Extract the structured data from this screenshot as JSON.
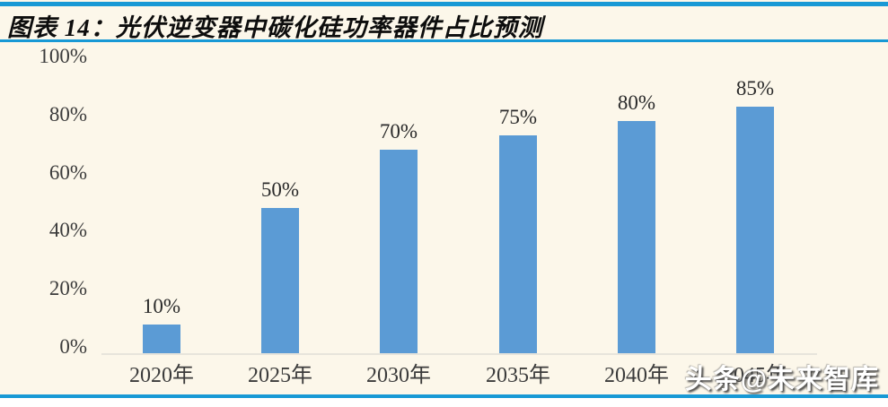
{
  "figure": {
    "title": "图表 14：光伏逆变器中碳化硅功率器件占比预测"
  },
  "watermark": "头条@未来智库",
  "colors": {
    "accent_blue": "#1899D5",
    "bar_blue": "#5B9BD5",
    "plot_background": "#FCF7EA",
    "axis_line_gray": "#E7E4DB",
    "label_text": "#3b3b3b"
  },
  "chart_data": {
    "type": "bar",
    "title": "光伏逆变器中碳化硅功率器件占比预测",
    "categories": [
      "2020年",
      "2025年",
      "2030年",
      "2035年",
      "2040年",
      "2045年"
    ],
    "values": [
      10,
      50,
      70,
      75,
      80,
      85
    ],
    "value_labels": [
      "10%",
      "50%",
      "70%",
      "75%",
      "80%",
      "85%"
    ],
    "xlabel": "",
    "ylabel": "",
    "y_ticks": [
      "0%",
      "20%",
      "40%",
      "60%",
      "80%",
      "100%"
    ],
    "ylim": [
      0,
      100
    ],
    "grid": false,
    "legend": "none",
    "bar_color": "#5B9BD5"
  }
}
